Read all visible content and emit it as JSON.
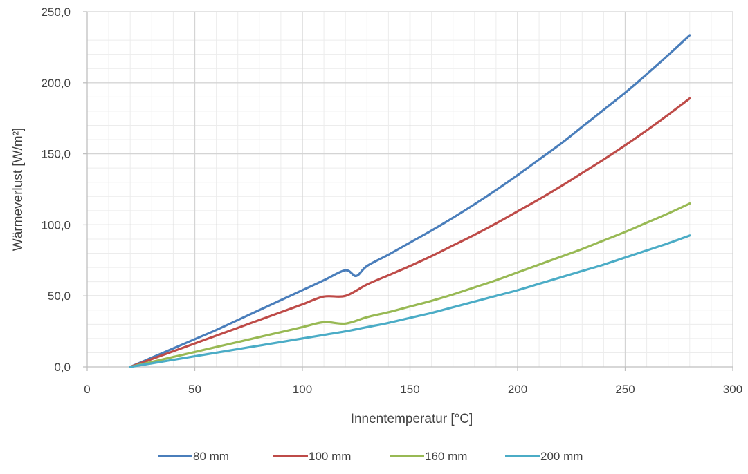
{
  "chart_data": {
    "type": "line",
    "title": "",
    "xlabel": "Innentemperatur [°C]",
    "ylabel": "Wärmeverlust [W/m²]",
    "xlim": [
      0,
      300
    ],
    "ylim": [
      0,
      250
    ],
    "x_ticks": [
      0,
      50,
      100,
      150,
      200,
      250,
      300
    ],
    "x_tick_labels": [
      "0",
      "50",
      "100",
      "150",
      "200",
      "250",
      "300"
    ],
    "y_ticks": [
      0,
      50,
      100,
      150,
      200,
      250
    ],
    "y_tick_labels": [
      "0,0",
      "50,0",
      "100,0",
      "150,0",
      "200,0",
      "250,0"
    ],
    "x_minor_step": 10,
    "y_minor_step": 10,
    "grid": true,
    "legend_position": "bottom",
    "series": [
      {
        "name": "80 mm",
        "color": "#4a7ebb",
        "x": [
          20,
          30,
          40,
          50,
          60,
          70,
          80,
          90,
          100,
          110,
          120,
          125,
          130,
          140,
          150,
          160,
          170,
          180,
          190,
          200,
          210,
          220,
          230,
          240,
          250,
          260,
          270,
          280
        ],
        "y": [
          0,
          6.5,
          13,
          19.5,
          26,
          33,
          40,
          47,
          54,
          61,
          68,
          64,
          71,
          79,
          87.5,
          96,
          105,
          114.5,
          124.5,
          135,
          146,
          157,
          169,
          181,
          193,
          206,
          219.5,
          233.5
        ]
      },
      {
        "name": "100 mm",
        "color": "#be4b48",
        "x": [
          20,
          30,
          40,
          50,
          60,
          70,
          80,
          90,
          100,
          110,
          120,
          130,
          140,
          150,
          160,
          170,
          180,
          190,
          200,
          210,
          220,
          230,
          240,
          250,
          260,
          270,
          280
        ],
        "y": [
          0,
          5.5,
          11,
          16.5,
          22,
          27.5,
          33,
          38.5,
          44,
          49.5,
          50,
          58,
          64.5,
          71,
          78,
          85.5,
          93,
          101,
          109.5,
          118,
          127,
          136.5,
          146,
          156,
          166.5,
          177.5,
          189
        ]
      },
      {
        "name": "160 mm",
        "color": "#98b954",
        "x": [
          20,
          30,
          40,
          50,
          60,
          70,
          80,
          90,
          100,
          110,
          120,
          130,
          140,
          150,
          160,
          170,
          180,
          190,
          200,
          210,
          220,
          230,
          240,
          250,
          260,
          270,
          280
        ],
        "y": [
          0,
          3.5,
          7,
          10.5,
          14,
          17.5,
          21,
          24.5,
          28,
          31.5,
          30.5,
          35,
          38.5,
          42.5,
          46.5,
          51,
          56,
          61,
          66.5,
          72,
          77.5,
          83,
          89,
          95,
          101.5,
          108,
          115
        ]
      },
      {
        "name": "200 mm",
        "color": "#4bacc6",
        "x": [
          20,
          30,
          40,
          50,
          60,
          70,
          80,
          90,
          100,
          110,
          120,
          130,
          140,
          150,
          160,
          170,
          180,
          190,
          200,
          210,
          220,
          230,
          240,
          250,
          260,
          270,
          280
        ],
        "y": [
          0,
          2.5,
          5,
          7.5,
          10,
          12.5,
          15,
          17.5,
          20,
          22.5,
          25,
          28,
          31,
          34.5,
          38,
          42,
          46,
          50,
          54,
          58.5,
          63,
          67.5,
          72,
          77,
          82,
          87,
          92.5
        ]
      }
    ]
  }
}
